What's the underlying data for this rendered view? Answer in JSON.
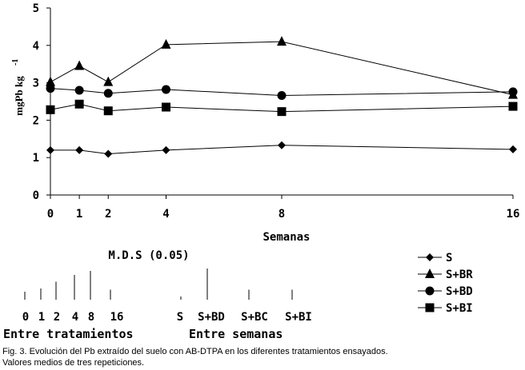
{
  "chart_data": {
    "type": "line",
    "x": [
      0,
      1,
      2,
      4,
      8,
      16
    ],
    "xlabel": "Semanas",
    "ylabel": "mgPb kg",
    "ylabel_exp": "-1",
    "ylim": [
      0,
      5
    ],
    "yticks": [
      0,
      1,
      2,
      3,
      4,
      5
    ],
    "grid": false,
    "legend_position": "bottom-right",
    "series": [
      {
        "name": "S",
        "marker": "diamond",
        "values": [
          1.2,
          1.2,
          1.1,
          1.2,
          1.33,
          1.22
        ]
      },
      {
        "name": "S+BR",
        "marker": "triangle",
        "values": [
          3.02,
          3.45,
          3.02,
          4.02,
          4.1,
          2.68
        ]
      },
      {
        "name": "S+BD",
        "marker": "circle",
        "values": [
          2.85,
          2.8,
          2.72,
          2.82,
          2.66,
          2.76
        ]
      },
      {
        "name": "S+BI",
        "marker": "square",
        "values": [
          2.28,
          2.43,
          2.25,
          2.35,
          2.23,
          2.37
        ]
      }
    ]
  },
  "mds": {
    "title": "M.D.S (0.05)",
    "between_treatments": {
      "labels": [
        "0",
        "1",
        "2",
        "4",
        "8",
        "16"
      ],
      "values": [
        0.2,
        0.28,
        0.45,
        0.62,
        0.72,
        0.25
      ],
      "caption": "Entre tratamientos"
    },
    "between_weeks": {
      "labels": [
        "S",
        "S+BD",
        "S+BC",
        "S+BI"
      ],
      "values": [
        0.08,
        0.78,
        0.25,
        0.25
      ],
      "caption": "Entre semanas"
    }
  },
  "caption": {
    "line1": "Fig. 3. Evolución del Pb extraído del suelo con AB-DTPA en los diferentes tratamientos ensayados.",
    "line2": "Valores medios de tres repeticiones."
  }
}
